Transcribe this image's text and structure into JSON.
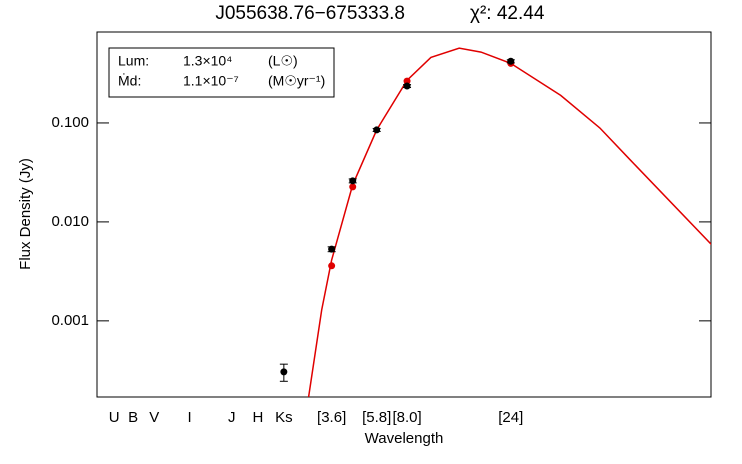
{
  "chart_data": {
    "type": "sed",
    "title": "J055638.76−675333.8",
    "fit_label": "χ²: 42.44",
    "x_label": "Wavelength",
    "y_label": "Flux Density (Jy)",
    "x_log": true,
    "y_log": true,
    "xlim": [
      0.3,
      200
    ],
    "ylim": [
      0.00017,
      0.83
    ],
    "xticks": [
      {
        "value": 0.36,
        "label": "U"
      },
      {
        "value": 0.44,
        "label": "B"
      },
      {
        "value": 0.55,
        "label": "V"
      },
      {
        "value": 0.8,
        "label": "I"
      },
      {
        "value": 1.25,
        "label": "J"
      },
      {
        "value": 1.65,
        "label": "H"
      },
      {
        "value": 2.17,
        "label": "Ks"
      },
      {
        "value": 3.6,
        "label": "[3.6]"
      },
      {
        "value": 5.8,
        "label": "[5.8]"
      },
      {
        "value": 8.0,
        "label": "[8.0]"
      },
      {
        "value": 24,
        "label": "[24]"
      }
    ],
    "yticks": [
      {
        "value": 0.1,
        "label": "0.100"
      },
      {
        "value": 0.01,
        "label": "0.010"
      },
      {
        "value": 0.001,
        "label": "0.001"
      }
    ],
    "legend_lines": [
      [
        "Lum:",
        "1.3×10⁴",
        "(L☉)"
      ],
      [
        "Ṁd:",
        "1.1×10⁻⁷",
        "(M☉yr⁻¹)"
      ]
    ],
    "series": [
      {
        "kind": "model-curve",
        "color": "#e00000",
        "x": [
          2.82,
          3.24,
          3.6,
          4.5,
          5.8,
          8.0,
          10.3,
          13.9,
          17.5,
          24,
          40.7,
          61.7,
          85.3,
          201
        ],
        "values": [
          0.00017,
          0.00129,
          0.0041,
          0.0237,
          0.085,
          0.27,
          0.46,
          0.57,
          0.52,
          0.4,
          0.19,
          0.089,
          0.042,
          0.0059
        ]
      },
      {
        "kind": "model-points",
        "color": "#e00000",
        "x": [
          3.6,
          4.5,
          8.0,
          24
        ],
        "values": [
          0.0036,
          0.0226,
          0.265,
          0.4
        ]
      },
      {
        "kind": "observed",
        "color": "#000000",
        "x": [
          2.17,
          3.6,
          4.5,
          5.8,
          8.0,
          24
        ],
        "values": [
          0.000305,
          0.0053,
          0.026,
          0.085,
          0.236,
          0.42
        ],
        "errors": [
          6e-05,
          0.0003,
          0.0012,
          0.003,
          0.008,
          0.015
        ]
      }
    ]
  }
}
